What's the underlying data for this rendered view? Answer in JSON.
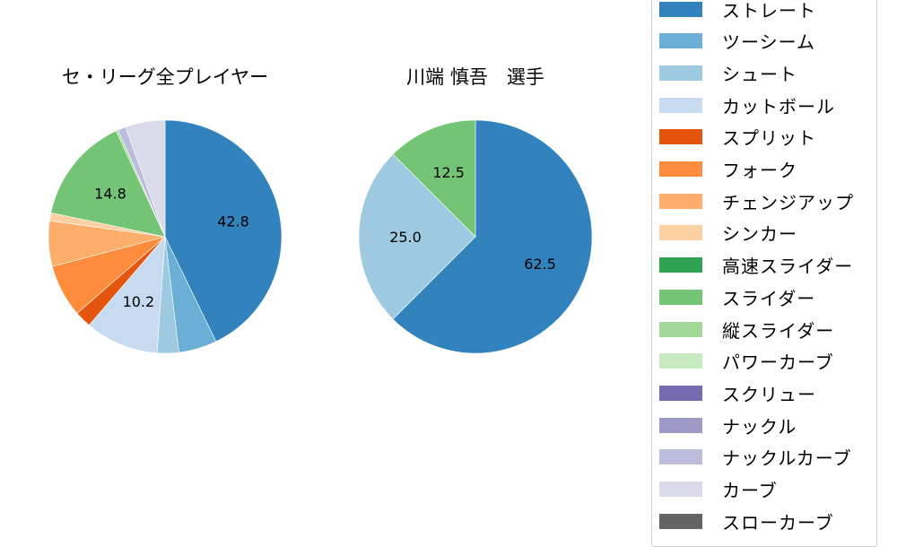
{
  "chart_data": [
    {
      "type": "pie",
      "title": "セ・リーグ全プレイヤー",
      "center": [
        184,
        264
      ],
      "radius": 130,
      "slices": [
        {
          "label": "ストレート",
          "value": 42.8,
          "color": "#3182bd",
          "show_label": true
        },
        {
          "label": "ツーシーム",
          "value": 5.3,
          "color": "#6baed6",
          "show_label": false
        },
        {
          "label": "シュート",
          "value": 3.0,
          "color": "#9ecae1",
          "show_label": false
        },
        {
          "label": "カットボール",
          "value": 10.2,
          "color": "#c6dbef",
          "show_label": true
        },
        {
          "label": "スプリット",
          "value": 2.3,
          "color": "#e6550d",
          "show_label": false
        },
        {
          "label": "フォーク",
          "value": 7.3,
          "color": "#fd8d3c",
          "show_label": false
        },
        {
          "label": "チェンジアップ",
          "value": 6.3,
          "color": "#fdae6b",
          "show_label": false
        },
        {
          "label": "シンカー",
          "value": 1.1,
          "color": "#fdd0a2",
          "show_label": false
        },
        {
          "label": "スライダー",
          "value": 14.8,
          "color": "#74c476",
          "show_label": true
        },
        {
          "label": "縦スライダー",
          "value": 0.3,
          "color": "#a1d99b",
          "show_label": false
        },
        {
          "label": "ナックルカーブ",
          "value": 1.1,
          "color": "#bcbddc",
          "show_label": false
        },
        {
          "label": "カーブ",
          "value": 5.5,
          "color": "#dadaeb",
          "show_label": false
        }
      ]
    },
    {
      "type": "pie",
      "title": "川端 慎吾　選手",
      "center": [
        530,
        264
      ],
      "radius": 130,
      "slices": [
        {
          "label": "ストレート",
          "value": 62.5,
          "color": "#3182bd",
          "show_label": true
        },
        {
          "label": "シュート",
          "value": 25.0,
          "color": "#9ecae1",
          "show_label": true
        },
        {
          "label": "スライダー",
          "value": 12.5,
          "color": "#74c476",
          "show_label": true
        }
      ]
    }
  ],
  "titles": {
    "left": "セ・リーグ全プレイヤー",
    "right": "川端 慎吾　選手"
  },
  "legend": {
    "items": [
      {
        "label": "ストレート",
        "color": "#3182bd"
      },
      {
        "label": "ツーシーム",
        "color": "#6baed6"
      },
      {
        "label": "シュート",
        "color": "#9ecae1"
      },
      {
        "label": "カットボール",
        "color": "#c6dbef"
      },
      {
        "label": "スプリット",
        "color": "#e6550d"
      },
      {
        "label": "フォーク",
        "color": "#fd8d3c"
      },
      {
        "label": "チェンジアップ",
        "color": "#fdae6b"
      },
      {
        "label": "シンカー",
        "color": "#fdd0a2"
      },
      {
        "label": "高速スライダー",
        "color": "#31a354"
      },
      {
        "label": "スライダー",
        "color": "#74c476"
      },
      {
        "label": "縦スライダー",
        "color": "#a1d99b"
      },
      {
        "label": "パワーカーブ",
        "color": "#c7e9c0"
      },
      {
        "label": "スクリュー",
        "color": "#756bb1"
      },
      {
        "label": "ナックル",
        "color": "#9e9ac8"
      },
      {
        "label": "ナックルカーブ",
        "color": "#bcbddc"
      },
      {
        "label": "カーブ",
        "color": "#dadaeb"
      },
      {
        "label": "スローカーブ",
        "color": "#636363"
      }
    ]
  }
}
